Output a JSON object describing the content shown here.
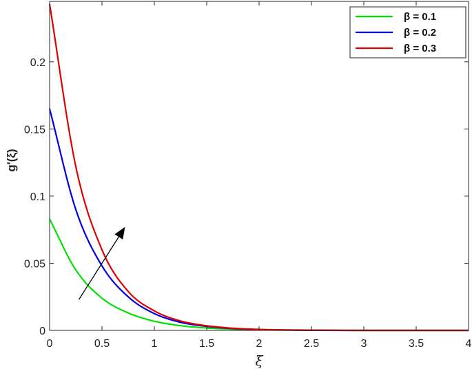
{
  "chart_data": {
    "type": "line",
    "xlabel": "ξ",
    "ylabel": "g′(ξ)",
    "xlim": [
      0,
      4
    ],
    "ylim": [
      0,
      0.245
    ],
    "x_ticks": [
      0,
      0.5,
      1,
      1.5,
      2,
      2.5,
      3,
      3.5,
      4
    ],
    "x_tick_labels": [
      "0",
      "0.5",
      "1",
      "1.5",
      "2",
      "2.5",
      "3",
      "3.5",
      "4"
    ],
    "y_ticks": [
      0,
      0.05,
      0.1,
      0.15,
      0.2
    ],
    "y_tick_labels": [
      "0",
      "0.05",
      "0.1",
      "0.15",
      "0.2"
    ],
    "grid": false,
    "legend_position": "top-right",
    "x": [
      0,
      0.25,
      0.5,
      0.75,
      1,
      1.25,
      1.5,
      1.75,
      2,
      2.5,
      3,
      3.5,
      4
    ],
    "series": [
      {
        "name": "β = 0.1",
        "color": "#00e000",
        "values": [
          0.083,
          0.045,
          0.024,
          0.013,
          0.0068,
          0.0035,
          0.0018,
          0.0009,
          0.0004,
          0.0001,
          0,
          0,
          0
        ]
      },
      {
        "name": "β = 0.2",
        "color": "#0000e0",
        "values": [
          0.165,
          0.09,
          0.048,
          0.025,
          0.0125,
          0.006,
          0.003,
          0.0014,
          0.0006,
          0.0001,
          0,
          0,
          0
        ]
      },
      {
        "name": "β = 0.3",
        "color": "#e00000",
        "values": [
          0.243,
          0.122,
          0.06,
          0.029,
          0.0145,
          0.007,
          0.0034,
          0.0016,
          0.0007,
          0.0002,
          0,
          0,
          0
        ]
      }
    ],
    "annotations": [
      {
        "type": "arrow",
        "description": "increasing β",
        "from": [
          0.28,
          0.023
        ],
        "to": [
          0.72,
          0.077
        ]
      }
    ]
  }
}
